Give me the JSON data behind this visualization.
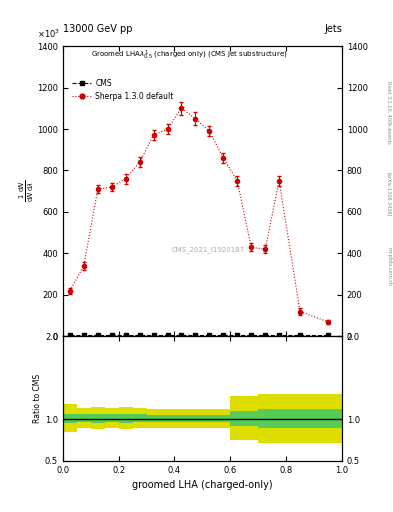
{
  "title_left": "13000 GeV pp",
  "title_right": "Jets",
  "xlabel": "groomed LHA (charged-only)",
  "watermark": "CMS_2021_I1920187",
  "rivet_label": "Rivet 3.1.10, 400k events",
  "arxiv_label": "[arXiv:1306.3436]",
  "mcplots_label": "mcplots.cern.ch",
  "sherpa_x": [
    0.025,
    0.075,
    0.125,
    0.175,
    0.225,
    0.275,
    0.325,
    0.375,
    0.425,
    0.475,
    0.525,
    0.575,
    0.625,
    0.675,
    0.725,
    0.775,
    0.85,
    0.95
  ],
  "sherpa_y": [
    220,
    340,
    710,
    720,
    760,
    840,
    970,
    1000,
    1100,
    1050,
    990,
    860,
    750,
    430,
    420,
    750,
    120,
    70
  ],
  "sherpa_yerr": [
    15,
    20,
    20,
    20,
    25,
    25,
    25,
    25,
    30,
    30,
    25,
    25,
    25,
    20,
    20,
    25,
    15,
    10
  ],
  "cms_x": [
    0.025,
    0.075,
    0.125,
    0.175,
    0.225,
    0.275,
    0.325,
    0.375,
    0.425,
    0.475,
    0.525,
    0.575,
    0.625,
    0.675,
    0.725,
    0.775,
    0.85,
    0.95
  ],
  "cms_y": [
    5,
    5,
    5,
    5,
    5,
    5,
    5,
    5,
    5,
    5,
    5,
    5,
    5,
    5,
    5,
    5,
    5,
    5
  ],
  "cms_yerr": [
    2,
    2,
    2,
    2,
    2,
    2,
    2,
    2,
    2,
    2,
    2,
    2,
    2,
    2,
    2,
    2,
    2,
    2
  ],
  "ratio_x_edges": [
    0.0,
    0.05,
    0.1,
    0.15,
    0.2,
    0.25,
    0.3,
    0.35,
    0.4,
    0.45,
    0.5,
    0.55,
    0.6,
    0.65,
    0.7,
    0.75,
    0.8,
    0.9,
    1.0
  ],
  "ratio_green_lo": [
    0.95,
    0.97,
    0.96,
    0.97,
    0.96,
    0.97,
    0.97,
    0.97,
    0.97,
    0.97,
    0.97,
    0.97,
    0.92,
    0.92,
    0.9,
    0.9,
    0.9,
    0.9
  ],
  "ratio_green_hi": [
    1.07,
    1.06,
    1.07,
    1.06,
    1.07,
    1.06,
    1.05,
    1.05,
    1.05,
    1.05,
    1.05,
    1.05,
    1.1,
    1.1,
    1.12,
    1.12,
    1.12,
    1.12
  ],
  "ratio_yellow_lo": [
    0.85,
    0.9,
    0.88,
    0.9,
    0.88,
    0.9,
    0.9,
    0.9,
    0.9,
    0.9,
    0.9,
    0.9,
    0.75,
    0.75,
    0.72,
    0.72,
    0.72,
    0.72
  ],
  "ratio_yellow_hi": [
    1.18,
    1.14,
    1.15,
    1.14,
    1.15,
    1.14,
    1.12,
    1.12,
    1.12,
    1.12,
    1.12,
    1.12,
    1.28,
    1.28,
    1.3,
    1.3,
    1.3,
    1.3
  ],
  "ylim_main": [
    0,
    1400
  ],
  "ylim_ratio": [
    0.5,
    2.0
  ],
  "xlim": [
    0,
    1
  ],
  "yticks_main": [
    0,
    200,
    400,
    600,
    800,
    1000,
    1200,
    1400
  ],
  "yticks_ratio": [
    0.5,
    1.0,
    2.0
  ],
  "color_sherpa": "#cc0000",
  "color_cms": "#000000",
  "color_green": "#55cc55",
  "color_yellow": "#dddd00",
  "background_color": "#ffffff"
}
